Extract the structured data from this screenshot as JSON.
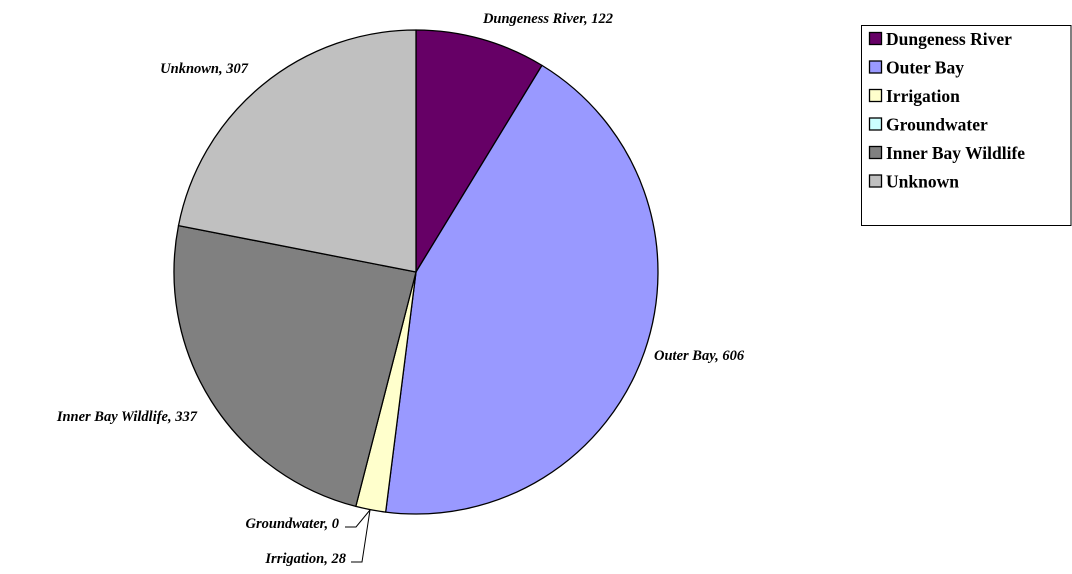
{
  "chart_data": {
    "type": "pie",
    "title": "",
    "slices": [
      {
        "label": "Dungeness River",
        "value": 122,
        "data_label": "Dungeness River, 122",
        "color": "#660066"
      },
      {
        "label": "Outer Bay",
        "value": 606,
        "data_label": "Outer Bay, 606",
        "color": "#9999FF"
      },
      {
        "label": "Irrigation",
        "value": 28,
        "data_label": "Irrigation, 28",
        "color": "#FFFFCC"
      },
      {
        "label": "Groundwater",
        "value": 0,
        "data_label": "Groundwater, 0",
        "color": "#CCFFFF"
      },
      {
        "label": "Inner Bay Wildlife",
        "value": 337,
        "data_label": "Inner Bay Wildlife, 337",
        "color": "#808080"
      },
      {
        "label": "Unknown",
        "value": 307,
        "data_label": "Unknown, 307",
        "color": "#C0C0C0"
      }
    ],
    "start_angle": "12 o'clock",
    "direction": "clockwise",
    "legend": {
      "position": "top-right",
      "entries": [
        "Dungeness River",
        "Outer Bay",
        "Irrigation",
        "Groundwater",
        "Inner Bay Wildlife",
        "Unknown"
      ]
    }
  }
}
